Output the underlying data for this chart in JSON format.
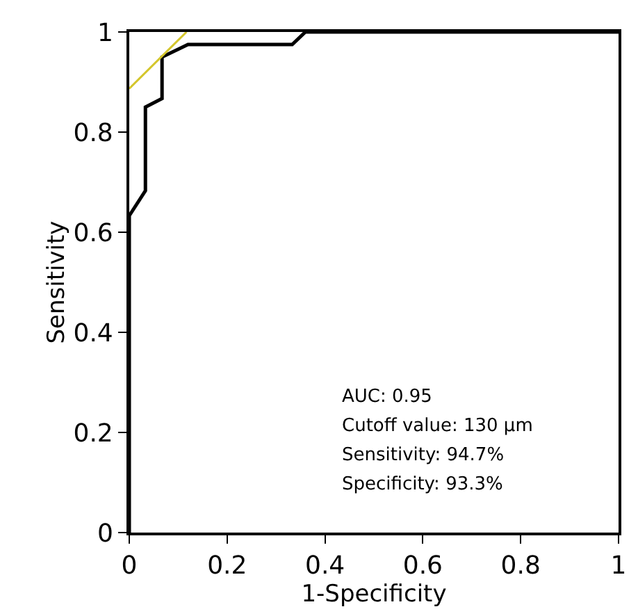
{
  "chart_data": {
    "type": "line",
    "xlabel": "1-Specificity",
    "ylabel": "Sensitivity",
    "xlim": [
      0,
      1
    ],
    "ylim": [
      0,
      1
    ],
    "xticks": [
      0,
      0.2,
      0.4,
      0.6,
      0.8,
      1
    ],
    "yticks": [
      0,
      0.2,
      0.4,
      0.6,
      0.8,
      1
    ],
    "series": [
      {
        "color": "#000000",
        "x": [
          0,
          0,
          0.033,
          0.033,
          0.067,
          0.067,
          0.12,
          0.333,
          0.36,
          1
        ],
        "values": [
          0,
          0.633,
          0.683,
          0.85,
          0.867,
          0.95,
          0.975,
          0.975,
          1,
          1
        ]
      },
      {
        "color": "#d4c62c",
        "x": [
          0,
          0.117
        ],
        "values": [
          0.887,
          1
        ]
      }
    ],
    "annotations": [
      "AUC: 0.95",
      "Cutoff value: 130 μm",
      "Sensitivity: 94.7%",
      "Specificity: 93.3%"
    ]
  }
}
